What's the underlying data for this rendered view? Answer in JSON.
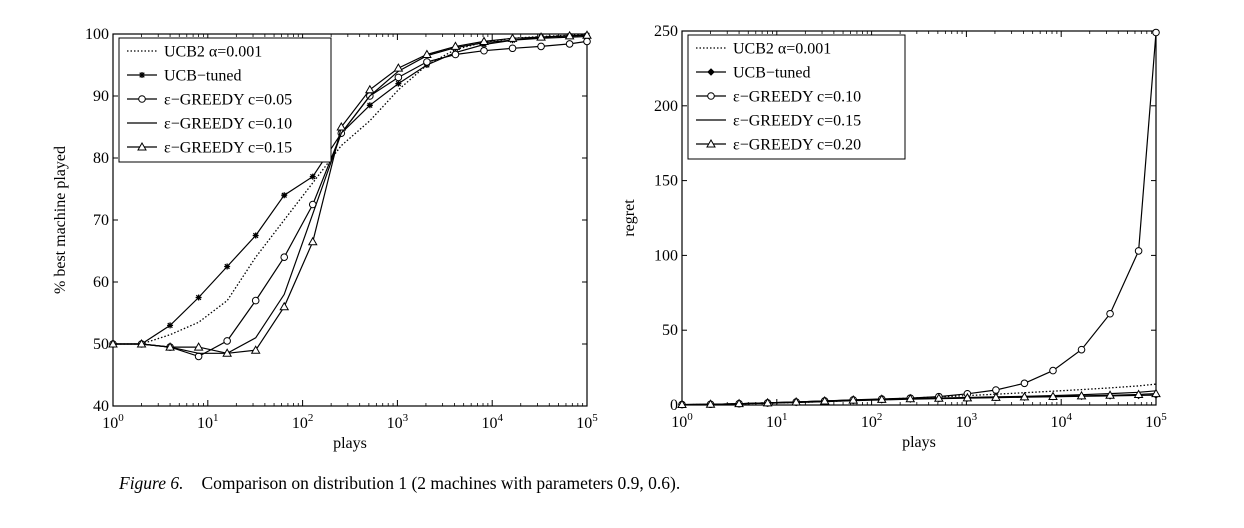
{
  "caption": {
    "label": "Figure 6.",
    "text": "Comparison on distribution 1 (2 machines with parameters 0.9, 0.6)."
  },
  "chart_data": [
    {
      "type": "line",
      "xlabel": "plays",
      "ylabel": "% best machine played",
      "xscale": "log10",
      "xlim": [
        1,
        100000
      ],
      "ylim": [
        40,
        100
      ],
      "xticks": [
        {
          "value": 1,
          "label": "10",
          "exp": "0"
        },
        {
          "value": 10,
          "label": "10",
          "exp": "1"
        },
        {
          "value": 100,
          "label": "10",
          "exp": "2"
        },
        {
          "value": 1000,
          "label": "10",
          "exp": "3"
        },
        {
          "value": 10000,
          "label": "10",
          "exp": "4"
        },
        {
          "value": 100000,
          "label": "10",
          "exp": "5"
        }
      ],
      "yticks": [
        {
          "value": 40,
          "label": "40"
        },
        {
          "value": 50,
          "label": "50"
        },
        {
          "value": 60,
          "label": "60"
        },
        {
          "value": 70,
          "label": "70"
        },
        {
          "value": 80,
          "label": "80"
        },
        {
          "value": 90,
          "label": "90"
        },
        {
          "value": 100,
          "label": "100"
        }
      ],
      "legend": "top-left",
      "grid": false,
      "series": [
        {
          "name": "UCB2 α=0.001",
          "style": "dotted",
          "marker": "none",
          "x": [
            1,
            2,
            4,
            8,
            16,
            32,
            64,
            128,
            256,
            512,
            1024,
            2048,
            4096,
            8192,
            16384,
            32768,
            65536,
            100000
          ],
          "y": [
            50,
            50,
            51.5,
            53.5,
            57,
            64,
            70,
            76,
            82,
            86,
            91,
            95,
            97.5,
            98.7,
            99.3,
            99.6,
            99.8,
            99.9
          ]
        },
        {
          "name": "UCB−tuned",
          "style": "solid",
          "marker": "star",
          "x": [
            1,
            2,
            4,
            8,
            16,
            32,
            64,
            128,
            256,
            512,
            1024,
            2048,
            4096,
            8192,
            16384,
            32768,
            65536,
            100000
          ],
          "y": [
            50,
            50,
            53,
            57.5,
            62.5,
            67.5,
            74,
            77,
            84,
            88.5,
            92,
            95,
            97,
            98.3,
            99,
            99.5,
            99.7,
            99.8
          ]
        },
        {
          "name": "ε−GREEDY c=0.05",
          "style": "solid",
          "marker": "circle",
          "x": [
            1,
            2,
            4,
            8,
            16,
            32,
            64,
            128,
            256,
            512,
            1024,
            2048,
            4096,
            8192,
            16384,
            32768,
            65536,
            100000
          ],
          "y": [
            50,
            50,
            49.5,
            48,
            50.5,
            57,
            64,
            72.5,
            84,
            90,
            93,
            95.5,
            96.7,
            97.3,
            97.7,
            98,
            98.4,
            98.8
          ]
        },
        {
          "name": "ε−GREEDY c=0.10",
          "style": "solid",
          "marker": "none",
          "x": [
            1,
            2,
            4,
            8,
            16,
            32,
            64,
            128,
            256,
            512,
            1024,
            2048,
            4096,
            8192,
            16384,
            32768,
            65536,
            100000
          ],
          "y": [
            50,
            50,
            49.5,
            48.5,
            48.5,
            51,
            58,
            71,
            84,
            90,
            94,
            96.5,
            97.8,
            98.6,
            99,
            99.3,
            99.5,
            99.6
          ]
        },
        {
          "name": "ε−GREEDY c=0.15",
          "style": "solid",
          "marker": "triangle",
          "x": [
            1,
            2,
            4,
            8,
            16,
            32,
            64,
            128,
            256,
            512,
            1024,
            2048,
            4096,
            8192,
            16384,
            32768,
            65536,
            100000
          ],
          "y": [
            50,
            50,
            49.5,
            49.5,
            48.5,
            49,
            56,
            66.5,
            85,
            91,
            94.5,
            96.7,
            98,
            98.8,
            99.3,
            99.5,
            99.7,
            99.8
          ]
        }
      ]
    },
    {
      "type": "line",
      "xlabel": "plays",
      "ylabel": "regret",
      "xscale": "log10",
      "xlim": [
        1,
        100000
      ],
      "ylim": [
        0,
        250
      ],
      "xticks": [
        {
          "value": 1,
          "label": "10",
          "exp": "0"
        },
        {
          "value": 10,
          "label": "10",
          "exp": "1"
        },
        {
          "value": 100,
          "label": "10",
          "exp": "2"
        },
        {
          "value": 1000,
          "label": "10",
          "exp": "3"
        },
        {
          "value": 10000,
          "label": "10",
          "exp": "4"
        },
        {
          "value": 100000,
          "label": "10",
          "exp": "5"
        }
      ],
      "yticks": [
        {
          "value": 0,
          "label": "0"
        },
        {
          "value": 50,
          "label": "50"
        },
        {
          "value": 100,
          "label": "100"
        },
        {
          "value": 150,
          "label": "150"
        },
        {
          "value": 200,
          "label": "200"
        },
        {
          "value": 250,
          "label": "250"
        }
      ],
      "legend": "top-left",
      "grid": false,
      "series": [
        {
          "name": "UCB2 α=0.001",
          "style": "dotted",
          "marker": "none",
          "x": [
            1,
            2,
            4,
            8,
            16,
            32,
            64,
            128,
            256,
            512,
            1024,
            2048,
            4096,
            8192,
            16384,
            32768,
            65536,
            100000
          ],
          "y": [
            0.2,
            0.4,
            0.8,
            1.2,
            1.7,
            2.3,
            3,
            3.8,
            4.6,
            5.4,
            6.3,
            7.2,
            8.2,
            9.2,
            10.3,
            11.4,
            12.8,
            14
          ]
        },
        {
          "name": "UCB−tuned",
          "style": "solid",
          "marker": "diamond",
          "x": [
            1,
            2,
            4,
            8,
            16,
            32,
            64,
            128,
            256,
            512,
            1024,
            2048,
            4096,
            8192,
            16384,
            32768,
            65536,
            100000
          ],
          "y": [
            0.3,
            0.5,
            0.8,
            1.2,
            1.7,
            2.3,
            2.9,
            3.4,
            3.9,
            4.3,
            4.6,
            4.9,
            5.2,
            5.5,
            5.8,
            6.1,
            6.4,
            6.6
          ]
        },
        {
          "name": "ε−GREEDY c=0.10",
          "style": "solid",
          "marker": "circle",
          "x": [
            1,
            2,
            4,
            8,
            16,
            32,
            64,
            128,
            256,
            512,
            1024,
            2048,
            4096,
            8192,
            16384,
            32768,
            65536,
            100000
          ],
          "y": [
            0.3,
            0.5,
            0.9,
            1.4,
            2,
            2.7,
            3.4,
            4,
            4.6,
            5.6,
            7.5,
            10,
            14.5,
            23,
            37,
            61,
            103,
            249
          ]
        },
        {
          "name": "ε−GREEDY c=0.15",
          "style": "solid",
          "marker": "none",
          "x": [
            1,
            2,
            4,
            8,
            16,
            32,
            64,
            128,
            256,
            512,
            1024,
            2048,
            4096,
            8192,
            16384,
            32768,
            65536,
            100000
          ],
          "y": [
            0.3,
            0.5,
            0.9,
            1.4,
            2,
            2.7,
            3.3,
            3.8,
            4.2,
            4.6,
            5,
            5.4,
            5.8,
            6.3,
            6.9,
            7.6,
            8.5,
            9.5
          ]
        },
        {
          "name": "ε−GREEDY c=0.20",
          "style": "solid",
          "marker": "triangle",
          "x": [
            1,
            2,
            4,
            8,
            16,
            32,
            64,
            128,
            256,
            512,
            1024,
            2048,
            4096,
            8192,
            16384,
            32768,
            65536,
            100000
          ],
          "y": [
            0.3,
            0.5,
            0.9,
            1.4,
            2,
            2.7,
            3.3,
            3.8,
            4.2,
            4.5,
            4.8,
            5.1,
            5.4,
            5.7,
            6.1,
            6.5,
            7,
            7.6
          ]
        }
      ]
    }
  ]
}
